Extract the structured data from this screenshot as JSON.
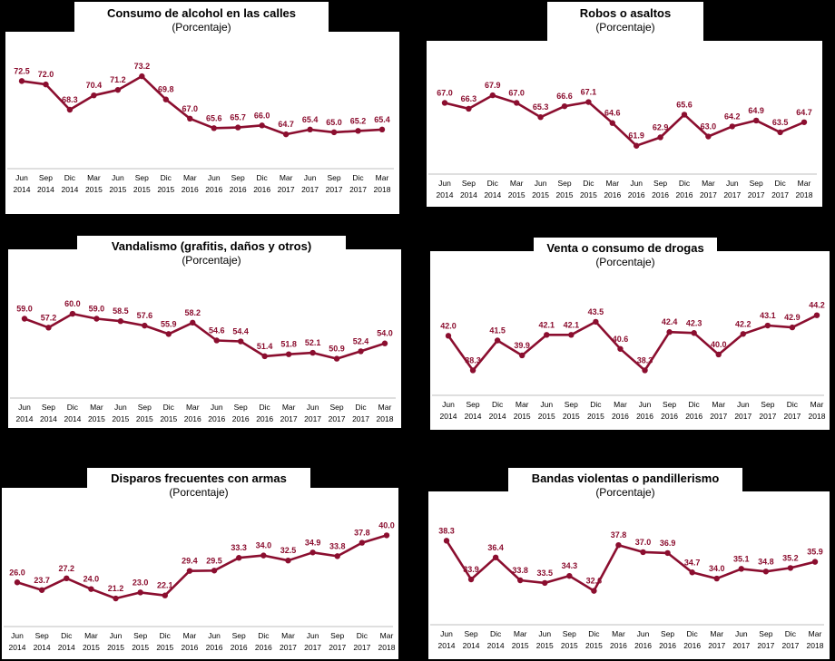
{
  "chart_data": [
    {
      "type": "line",
      "title": "Consumo de alcohol en las calles",
      "subtitle": "(Porcentaje)",
      "categories": [
        "Jun 2014",
        "Sep 2014",
        "Dic 2014",
        "Mar 2015",
        "Jun 2015",
        "Sep 2015",
        "Dic 2015",
        "Mar 2016",
        "Jun 2016",
        "Sep 2016",
        "Dic 2016",
        "Mar 2017",
        "Jun 2017",
        "Sep 2017",
        "Dic 2017",
        "Mar 2018"
      ],
      "tick_line1": [
        "Jun",
        "Sep",
        "Dic",
        "Mar",
        "Jun",
        "Sep",
        "Dic",
        "Mar",
        "Jun",
        "Sep",
        "Dic",
        "Mar",
        "Jun",
        "Sep",
        "Dic",
        "Mar"
      ],
      "tick_line2": [
        "2014",
        "2014",
        "2014",
        "2015",
        "2015",
        "2015",
        "2015",
        "2016",
        "2016",
        "2016",
        "2016",
        "2017",
        "2017",
        "2017",
        "2017",
        "2018"
      ],
      "values": [
        72.5,
        72.0,
        68.3,
        70.4,
        71.2,
        73.2,
        69.8,
        67.0,
        65.6,
        65.7,
        66.0,
        64.7,
        65.4,
        65.0,
        65.2,
        65.4
      ],
      "labels": [
        "72.5",
        "72.0",
        "68.3",
        "70.4",
        "71.2",
        "73.2",
        "69.8",
        "67.0",
        "65.6",
        "65.7",
        "66.0",
        "64.7",
        "65.4",
        "65.0",
        "65.2",
        "65.4"
      ],
      "ylim": [
        61,
        76
      ],
      "color": "#8B0E2F"
    },
    {
      "type": "line",
      "title": "Robos o asaltos",
      "subtitle": "(Porcentaje)",
      "categories": [
        "Jun 2014",
        "Sep 2014",
        "Dic 2014",
        "Mar 2015",
        "Jun 2015",
        "Sep 2015",
        "Dic 2015",
        "Mar 2016",
        "Jun 2016",
        "Sep 2016",
        "Dic 2016",
        "Mar 2017",
        "Jun 2017",
        "Sep 2017",
        "Dic 2017",
        "Mar 2018"
      ],
      "tick_line1": [
        "Jun",
        "Sep",
        "Dic",
        "Mar",
        "Jun",
        "Sep",
        "Dic",
        "Mar",
        "Jun",
        "Sep",
        "Dic",
        "Mar",
        "Jun",
        "Sep",
        "Dic",
        "Mar"
      ],
      "tick_line2": [
        "2014",
        "2014",
        "2014",
        "2015",
        "2015",
        "2015",
        "2015",
        "2016",
        "2016",
        "2016",
        "2016",
        "2017",
        "2017",
        "2017",
        "2017",
        "2018"
      ],
      "values": [
        67.0,
        66.3,
        67.9,
        67.0,
        65.3,
        66.6,
        67.1,
        64.6,
        61.9,
        62.9,
        65.6,
        63.0,
        64.2,
        64.9,
        63.5,
        64.7
      ],
      "labels": [
        "67.0",
        "66.3",
        "67.9",
        "67.0",
        "65.3",
        "66.6",
        "67.1",
        "64.6",
        "61.9",
        "62.9",
        "65.6",
        "63.0",
        "64.2",
        "64.9",
        "63.5",
        "64.7"
      ],
      "ylim": [
        59.5,
        70.5
      ],
      "color": "#8B0E2F"
    },
    {
      "type": "line",
      "title": "Vandalismo (grafitis, daños y otros)",
      "subtitle": "(Porcentaje)",
      "categories": [
        "Jun 2014",
        "Sep 2014",
        "Dic 2014",
        "Mar 2015",
        "Jun 2015",
        "Sep 2015",
        "Dic 2015",
        "Mar 2016",
        "Jun 2016",
        "Sep 2016",
        "Dic 2016",
        "Mar 2017",
        "Jun 2017",
        "Sep 2017",
        "Dic 2017",
        "Mar 2018"
      ],
      "tick_line1": [
        "Jun",
        "Sep",
        "Dic",
        "Mar",
        "Jun",
        "Sep",
        "Dic",
        "Mar",
        "Jun",
        "Sep",
        "Dic",
        "Mar",
        "Jun",
        "Sep",
        "Dic",
        "Mar"
      ],
      "tick_line2": [
        "2014",
        "2014",
        "2014",
        "2015",
        "2015",
        "2015",
        "2015",
        "2016",
        "2016",
        "2016",
        "2016",
        "2017",
        "2017",
        "2017",
        "2017",
        "2018"
      ],
      "values": [
        59.0,
        57.2,
        60.0,
        59.0,
        58.5,
        57.6,
        55.9,
        58.2,
        54.6,
        54.4,
        51.4,
        51.8,
        52.1,
        50.9,
        52.4,
        54.0
      ],
      "labels": [
        "59.0",
        "57.2",
        "60.0",
        "59.0",
        "58.5",
        "57.6",
        "55.9",
        "58.2",
        "54.6",
        "54.4",
        "51.4",
        "51.8",
        "52.1",
        "50.9",
        "52.4",
        "54.0"
      ],
      "ylim": [
        45.5,
        63.5
      ],
      "color": "#8B0E2F"
    },
    {
      "type": "line",
      "title": "Venta o consumo de drogas",
      "subtitle": "(Porcentaje)",
      "categories": [
        "Jun 2014",
        "Sep 2014",
        "Dic 2014",
        "Mar 2015",
        "Jun 2015",
        "Sep 2015",
        "Dic 2015",
        "Mar 2016",
        "Jun 2016",
        "Sep 2016",
        "Dic 2016",
        "Mar 2017",
        "Jun 2017",
        "Sep 2017",
        "Dic 2017",
        "Mar 2018"
      ],
      "tick_line1": [
        "Jun",
        "Sep",
        "Dic",
        "Mar",
        "Jun",
        "Sep",
        "Dic",
        "Mar",
        "Jun",
        "Sep",
        "Dic",
        "Mar",
        "Jun",
        "Sep",
        "Dic",
        "Mar"
      ],
      "tick_line2": [
        "2014",
        "2014",
        "2014",
        "2015",
        "2015",
        "2015",
        "2015",
        "2016",
        "2016",
        "2016",
        "2016",
        "2017",
        "2017",
        "2017",
        "2017",
        "2018"
      ],
      "values": [
        42.0,
        38.3,
        41.5,
        39.9,
        42.1,
        42.1,
        43.5,
        40.6,
        38.3,
        42.4,
        42.3,
        40.0,
        42.2,
        43.1,
        42.9,
        44.2
      ],
      "labels": [
        "42.0",
        "38.3",
        "41.5",
        "39.9",
        "42.1",
        "42.1",
        "43.5",
        "40.6",
        "38.3",
        "42.4",
        "42.3",
        "40.0",
        "42.2",
        "43.1",
        "42.9",
        "44.2"
      ],
      "ylim": [
        36.5,
        46.5
      ],
      "color": "#8B0E2F"
    },
    {
      "type": "line",
      "title": "Disparos frecuentes con armas",
      "subtitle": "(Porcentaje)",
      "categories": [
        "Jun 2014",
        "Sep 2014",
        "Dic 2014",
        "Mar 2015",
        "Jun 2015",
        "Sep 2015",
        "Dic 2015",
        "Mar 2016",
        "Jun 2016",
        "Sep 2016",
        "Dic 2016",
        "Mar 2017",
        "Jun 2017",
        "Sep 2017",
        "Dic 2017",
        "Mar 2018"
      ],
      "tick_line1": [
        "Jun",
        "Sep",
        "Dic",
        "Mar",
        "Jun",
        "Sep",
        "Dic",
        "Mar",
        "Jun",
        "Sep",
        "Dic",
        "Mar",
        "Jun",
        "Sep",
        "Dic",
        "Mar"
      ],
      "tick_line2": [
        "2014",
        "2014",
        "2014",
        "2015",
        "2015",
        "2015",
        "2015",
        "2016",
        "2016",
        "2016",
        "2016",
        "2017",
        "2017",
        "2017",
        "2017",
        "2018"
      ],
      "values": [
        26.0,
        23.7,
        27.2,
        24.0,
        21.2,
        23.0,
        22.1,
        29.4,
        29.5,
        33.3,
        34.0,
        32.5,
        34.9,
        33.8,
        37.8,
        40.0
      ],
      "labels": [
        "26.0",
        "23.7",
        "27.2",
        "24.0",
        "21.2",
        "23.0",
        "22.1",
        "29.4",
        "29.5",
        "33.3",
        "34.0",
        "32.5",
        "34.9",
        "33.8",
        "37.8",
        "40.0"
      ],
      "ylim": [
        15,
        42
      ],
      "color": "#8B0E2F"
    },
    {
      "type": "line",
      "title": "Bandas violentas o pandillerismo",
      "subtitle": "(Porcentaje)",
      "categories": [
        "Jun 2014",
        "Sep 2014",
        "Dic 2014",
        "Mar 2015",
        "Jun 2015",
        "Sep 2015",
        "Dic 2015",
        "Mar 2016",
        "Jun 2016",
        "Sep 2016",
        "Dic 2016",
        "Mar 2017",
        "Jun 2017",
        "Sep 2017",
        "Dic 2017",
        "Mar 2018"
      ],
      "tick_line1": [
        "Jun",
        "Sep",
        "Dic",
        "Mar",
        "Jun",
        "Sep",
        "Dic",
        "Mar",
        "Jun",
        "Sep",
        "Dic",
        "Mar",
        "Jun",
        "Sep",
        "Dic",
        "Mar"
      ],
      "tick_line2": [
        "2014",
        "2014",
        "2014",
        "2015",
        "2015",
        "2015",
        "2015",
        "2016",
        "2016",
        "2016",
        "2016",
        "2017",
        "2017",
        "2017",
        "2017",
        "2018"
      ],
      "values": [
        38.3,
        33.9,
        36.4,
        33.8,
        33.5,
        34.3,
        32.6,
        37.8,
        37.0,
        36.9,
        34.7,
        34.0,
        35.1,
        34.8,
        35.2,
        35.9
      ],
      "labels": [
        "38.3",
        "33.9",
        "36.4",
        "33.8",
        "33.5",
        "34.3",
        "32.6",
        "37.8",
        "37.0",
        "36.9",
        "34.7",
        "34.0",
        "35.1",
        "34.8",
        "35.2",
        "35.9"
      ],
      "ylim": [
        30.5,
        40.5
      ],
      "color": "#8B0E2F"
    }
  ]
}
